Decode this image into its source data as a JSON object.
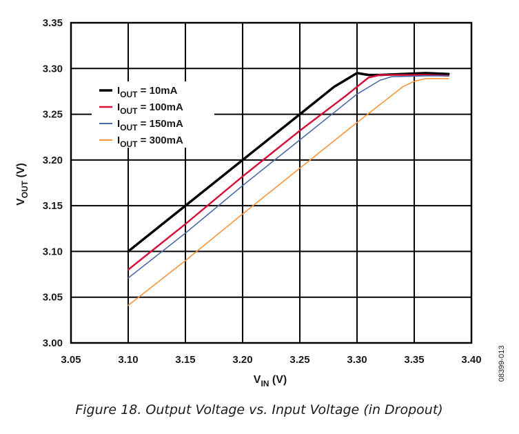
{
  "chart_data": {
    "type": "line",
    "title": "",
    "xlabel_main": "V",
    "xlabel_sub": "IN",
    "xlabel_unit": " (V)",
    "ylabel_main": "V",
    "ylabel_sub": "OUT",
    "ylabel_unit": " (V)",
    "xlim": [
      3.05,
      3.4
    ],
    "ylim": [
      3.0,
      3.35
    ],
    "x_ticks": [
      "3.05",
      "3.10",
      "3.15",
      "3.20",
      "3.25",
      "3.30",
      "3.35",
      "3.40"
    ],
    "y_ticks": [
      "3.00",
      "3.05",
      "3.10",
      "3.15",
      "3.20",
      "3.25",
      "3.30",
      "3.35"
    ],
    "grid": true,
    "legend_position": "top-left",
    "series": [
      {
        "legend_main": "I",
        "legend_sub": "OUT",
        "legend_value": " = 10mA",
        "color": "#000000",
        "width": 3.5,
        "x": [
          3.1,
          3.15,
          3.2,
          3.25,
          3.28,
          3.3,
          3.31,
          3.32,
          3.36,
          3.38
        ],
        "y": [
          3.1,
          3.15,
          3.2,
          3.25,
          3.28,
          3.295,
          3.293,
          3.293,
          3.295,
          3.294
        ]
      },
      {
        "legend_main": "I",
        "legend_sub": "OUT",
        "legend_value": " = 100mA",
        "color": "#d4113c",
        "width": 2.5,
        "x": [
          3.1,
          3.15,
          3.2,
          3.25,
          3.29,
          3.31,
          3.32,
          3.36,
          3.38
        ],
        "y": [
          3.08,
          3.13,
          3.182,
          3.232,
          3.27,
          3.29,
          3.293,
          3.293,
          3.292
        ]
      },
      {
        "legend_main": "I",
        "legend_sub": "OUT",
        "legend_value": " = 150mA",
        "color": "#4a6aa8",
        "width": 1.6,
        "x": [
          3.1,
          3.15,
          3.2,
          3.25,
          3.3,
          3.32,
          3.33,
          3.36,
          3.38
        ],
        "y": [
          3.071,
          3.12,
          3.172,
          3.222,
          3.272,
          3.287,
          3.291,
          3.292,
          3.292
        ]
      },
      {
        "legend_main": "I",
        "legend_sub": "OUT",
        "legend_value": " = 300mA",
        "color": "#f7943c",
        "width": 1.6,
        "x": [
          3.1,
          3.15,
          3.2,
          3.25,
          3.3,
          3.34,
          3.35,
          3.36,
          3.38
        ],
        "y": [
          3.041,
          3.09,
          3.141,
          3.191,
          3.241,
          3.28,
          3.286,
          3.289,
          3.289
        ]
      }
    ],
    "side_code": "08399-013",
    "caption": "Figure 18. Output Voltage vs. Input Voltage (in Dropout)"
  }
}
